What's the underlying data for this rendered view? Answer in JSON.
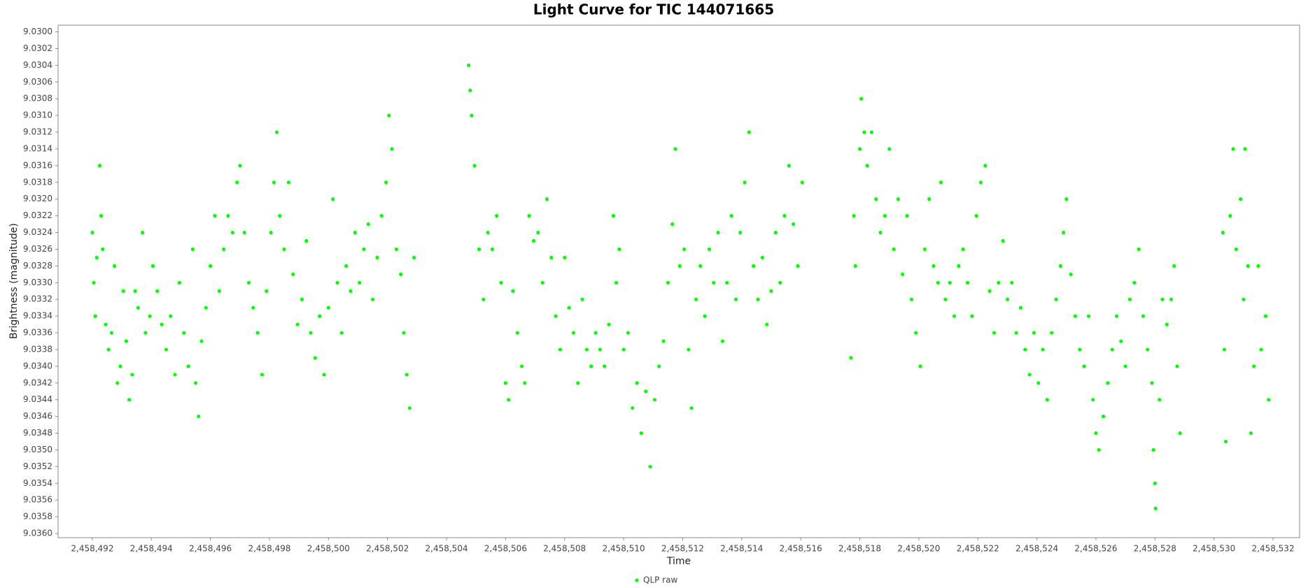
{
  "chart_data": {
    "type": "scatter",
    "title": "Light Curve for TIC 144071665",
    "x_label": "Time",
    "y_label": "Brightness (magnitude)",
    "xlim": [
      2458490.84,
      2458532.9
    ],
    "ylim": [
      9.03605,
      9.02992
    ],
    "xticks": [
      {
        "value": 2458492,
        "label": "2,458,492"
      },
      {
        "value": 2458494,
        "label": "2,458,494"
      },
      {
        "value": 2458496,
        "label": "2,458,496"
      },
      {
        "value": 2458498,
        "label": "2,458,498"
      },
      {
        "value": 2458500,
        "label": "2,458,500"
      },
      {
        "value": 2458502,
        "label": "2,458,502"
      },
      {
        "value": 2458504,
        "label": "2,458,504"
      },
      {
        "value": 2458506,
        "label": "2,458,506"
      },
      {
        "value": 2458508,
        "label": "2,458,508"
      },
      {
        "value": 2458510,
        "label": "2,458,510"
      },
      {
        "value": 2458512,
        "label": "2,458,512"
      },
      {
        "value": 2458514,
        "label": "2,458,514"
      },
      {
        "value": 2458516,
        "label": "2,458,516"
      },
      {
        "value": 2458518,
        "label": "2,458,518"
      },
      {
        "value": 2458520,
        "label": "2,458,520"
      },
      {
        "value": 2458522,
        "label": "2,458,522"
      },
      {
        "value": 2458524,
        "label": "2,458,524"
      },
      {
        "value": 2458526,
        "label": "2,458,526"
      },
      {
        "value": 2458528,
        "label": "2,458,528"
      },
      {
        "value": 2458530,
        "label": "2,458,530"
      },
      {
        "value": 2458532,
        "label": "2,458,532"
      }
    ],
    "yticks": [
      {
        "value": 9.03,
        "label": "9.0300"
      },
      {
        "value": 9.0302,
        "label": "9.0302"
      },
      {
        "value": 9.0304,
        "label": "9.0304"
      },
      {
        "value": 9.0306,
        "label": "9.0306"
      },
      {
        "value": 9.0308,
        "label": "9.0308"
      },
      {
        "value": 9.031,
        "label": "9.0310"
      },
      {
        "value": 9.0312,
        "label": "9.0312"
      },
      {
        "value": 9.0314,
        "label": "9.0314"
      },
      {
        "value": 9.0316,
        "label": "9.0316"
      },
      {
        "value": 9.0318,
        "label": "9.0318"
      },
      {
        "value": 9.032,
        "label": "9.0320"
      },
      {
        "value": 9.0322,
        "label": "9.0322"
      },
      {
        "value": 9.0324,
        "label": "9.0324"
      },
      {
        "value": 9.0326,
        "label": "9.0326"
      },
      {
        "value": 9.0328,
        "label": "9.0328"
      },
      {
        "value": 9.033,
        "label": "9.0330"
      },
      {
        "value": 9.0332,
        "label": "9.0332"
      },
      {
        "value": 9.0334,
        "label": "9.0334"
      },
      {
        "value": 9.0336,
        "label": "9.0336"
      },
      {
        "value": 9.0338,
        "label": "9.0338"
      },
      {
        "value": 9.034,
        "label": "9.0340"
      },
      {
        "value": 9.0342,
        "label": "9.0342"
      },
      {
        "value": 9.0344,
        "label": "9.0344"
      },
      {
        "value": 9.0346,
        "label": "9.0346"
      },
      {
        "value": 9.0348,
        "label": "9.0348"
      },
      {
        "value": 9.035,
        "label": "9.0350"
      },
      {
        "value": 9.0352,
        "label": "9.0352"
      },
      {
        "value": 9.0354,
        "label": "9.0354"
      },
      {
        "value": 9.0356,
        "label": "9.0356"
      },
      {
        "value": 9.0358,
        "label": "9.0358"
      },
      {
        "value": 9.036,
        "label": "9.0360"
      }
    ],
    "grid": false,
    "legend": "bottom",
    "x": [
      2458492.0,
      2458492.05,
      2458492.1,
      2458492.15,
      2458492.25,
      2458492.3,
      2458492.35,
      2458492.45,
      2458492.55,
      2458492.65,
      2458492.75,
      2458492.85,
      2458492.95,
      2458493.05,
      2458493.15,
      2458493.25,
      2458493.35,
      2458493.45,
      2458493.55,
      2458493.7,
      2458493.8,
      2458493.95,
      2458494.05,
      2458494.2,
      2458494.35,
      2458494.5,
      2458494.65,
      2458494.8,
      2458494.95,
      2458495.1,
      2458495.25,
      2458495.4,
      2458495.5,
      2458495.6,
      2458495.7,
      2458495.85,
      2458496.0,
      2458496.15,
      2458496.3,
      2458496.45,
      2458496.6,
      2458496.75,
      2458496.9,
      2458497.0,
      2458497.15,
      2458497.3,
      2458497.45,
      2458497.6,
      2458497.75,
      2458497.9,
      2458498.05,
      2458498.15,
      2458498.25,
      2458498.35,
      2458498.5,
      2458498.65,
      2458498.8,
      2458498.95,
      2458499.1,
      2458499.25,
      2458499.4,
      2458499.55,
      2458499.7,
      2458499.85,
      2458500.0,
      2458500.15,
      2458500.3,
      2458500.45,
      2458500.6,
      2458500.75,
      2458500.9,
      2458501.05,
      2458501.2,
      2458501.35,
      2458501.5,
      2458501.65,
      2458501.8,
      2458501.95,
      2458502.05,
      2458502.15,
      2458502.3,
      2458502.45,
      2458502.55,
      2458502.65,
      2458502.75,
      2458502.9,
      2458504.75,
      2458504.8,
      2458504.85,
      2458504.95,
      2458505.1,
      2458505.25,
      2458505.4,
      2458505.55,
      2458505.7,
      2458505.85,
      2458506.0,
      2458506.1,
      2458506.25,
      2458506.4,
      2458506.55,
      2458506.65,
      2458506.8,
      2458506.95,
      2458507.1,
      2458507.25,
      2458507.4,
      2458507.55,
      2458507.7,
      2458507.85,
      2458508.0,
      2458508.15,
      2458508.3,
      2458508.45,
      2458508.6,
      2458508.75,
      2458508.9,
      2458509.05,
      2458509.2,
      2458509.35,
      2458509.5,
      2458509.65,
      2458509.75,
      2458509.85,
      2458510.0,
      2458510.15,
      2458510.3,
      2458510.45,
      2458510.6,
      2458510.75,
      2458510.9,
      2458511.05,
      2458511.2,
      2458511.35,
      2458511.5,
      2458511.65,
      2458511.75,
      2458511.9,
      2458512.05,
      2458512.2,
      2458512.3,
      2458512.45,
      2458512.6,
      2458512.75,
      2458512.9,
      2458513.05,
      2458513.2,
      2458513.35,
      2458513.5,
      2458513.65,
      2458513.8,
      2458513.95,
      2458514.1,
      2458514.25,
      2458514.4,
      2458514.55,
      2458514.7,
      2458514.85,
      2458515.0,
      2458515.15,
      2458515.3,
      2458515.45,
      2458515.6,
      2458515.75,
      2458515.9,
      2458516.05,
      2458517.7,
      2458517.8,
      2458517.85,
      2458518.0,
      2458518.05,
      2458518.15,
      2458518.25,
      2458518.4,
      2458518.55,
      2458518.7,
      2458518.85,
      2458519.0,
      2458519.15,
      2458519.3,
      2458519.45,
      2458519.6,
      2458519.75,
      2458519.9,
      2458520.05,
      2458520.2,
      2458520.35,
      2458520.5,
      2458520.65,
      2458520.75,
      2458520.9,
      2458521.05,
      2458521.2,
      2458521.35,
      2458521.5,
      2458521.65,
      2458521.8,
      2458521.95,
      2458522.1,
      2458522.25,
      2458522.4,
      2458522.55,
      2458522.7,
      2458522.85,
      2458523.0,
      2458523.15,
      2458523.3,
      2458523.45,
      2458523.6,
      2458523.75,
      2458523.9,
      2458524.05,
      2458524.2,
      2458524.35,
      2458524.5,
      2458524.65,
      2458524.8,
      2458524.9,
      2458525.0,
      2458525.15,
      2458525.3,
      2458525.45,
      2458525.6,
      2458525.75,
      2458525.9,
      2458526.0,
      2458526.1,
      2458526.25,
      2458526.4,
      2458526.55,
      2458526.7,
      2458526.85,
      2458527.0,
      2458527.15,
      2458527.3,
      2458527.45,
      2458527.6,
      2458527.75,
      2458527.9,
      2458527.95,
      2458528.0,
      2458528.02,
      2458528.15,
      2458528.25,
      2458528.4,
      2458528.55,
      2458528.65,
      2458528.75,
      2458528.85,
      2458530.3,
      2458530.35,
      2458530.4,
      2458530.55,
      2458530.65,
      2458530.75,
      2458530.9,
      2458531.0,
      2458531.05,
      2458531.15,
      2458531.25,
      2458531.35,
      2458531.5,
      2458531.6,
      2458531.75,
      2458531.85
    ],
    "series": [
      {
        "name": "QLP raw",
        "color": "#00ff00",
        "values": [
          9.0324,
          9.033,
          9.0334,
          9.0327,
          9.0316,
          9.0322,
          9.0326,
          9.0335,
          9.0338,
          9.0336,
          9.0328,
          9.0342,
          9.034,
          9.0331,
          9.0337,
          9.0344,
          9.0341,
          9.0331,
          9.0333,
          9.0324,
          9.0336,
          9.0334,
          9.0328,
          9.0331,
          9.0335,
          9.0338,
          9.0334,
          9.0341,
          9.033,
          9.0336,
          9.034,
          9.0326,
          9.0342,
          9.0346,
          9.0337,
          9.0333,
          9.0328,
          9.0322,
          9.0331,
          9.0326,
          9.0322,
          9.0324,
          9.0318,
          9.0316,
          9.0324,
          9.033,
          9.0333,
          9.0336,
          9.0341,
          9.0331,
          9.0324,
          9.0318,
          9.0312,
          9.0322,
          9.0326,
          9.0318,
          9.0329,
          9.0335,
          9.0332,
          9.0325,
          9.0336,
          9.0339,
          9.0334,
          9.0341,
          9.0333,
          9.032,
          9.033,
          9.0336,
          9.0328,
          9.0331,
          9.0324,
          9.033,
          9.0326,
          9.0323,
          9.0332,
          9.0327,
          9.0322,
          9.0318,
          9.031,
          9.0314,
          9.0326,
          9.0329,
          9.0336,
          9.0341,
          9.0345,
          9.0327,
          9.0304,
          9.0307,
          9.031,
          9.0316,
          9.0326,
          9.0332,
          9.0324,
          9.0326,
          9.0322,
          9.033,
          9.0342,
          9.0344,
          9.0331,
          9.0336,
          9.034,
          9.0342,
          9.0322,
          9.0325,
          9.0324,
          9.033,
          9.032,
          9.0327,
          9.0334,
          9.0338,
          9.0327,
          9.0333,
          9.0336,
          9.0342,
          9.0332,
          9.0338,
          9.034,
          9.0336,
          9.0338,
          9.034,
          9.0335,
          9.0322,
          9.033,
          9.0326,
          9.0338,
          9.0336,
          9.0345,
          9.0342,
          9.0348,
          9.0343,
          9.0352,
          9.0344,
          9.034,
          9.0337,
          9.033,
          9.0323,
          9.0314,
          9.0328,
          9.0326,
          9.0338,
          9.0345,
          9.0332,
          9.0328,
          9.0334,
          9.0326,
          9.033,
          9.0324,
          9.0337,
          9.033,
          9.0322,
          9.0332,
          9.0324,
          9.0318,
          9.0312,
          9.0328,
          9.0332,
          9.0327,
          9.0335,
          9.0331,
          9.0324,
          9.033,
          9.0322,
          9.0316,
          9.0323,
          9.0328,
          9.0318,
          9.0339,
          9.0322,
          9.0328,
          9.0314,
          9.0308,
          9.0312,
          9.0316,
          9.0312,
          9.032,
          9.0324,
          9.0322,
          9.0314,
          9.0326,
          9.032,
          9.0329,
          9.0322,
          9.0332,
          9.0336,
          9.034,
          9.0326,
          9.032,
          9.0328,
          9.033,
          9.0318,
          9.0332,
          9.033,
          9.0334,
          9.0328,
          9.0326,
          9.033,
          9.0334,
          9.0322,
          9.0318,
          9.0316,
          9.0331,
          9.0336,
          9.033,
          9.0325,
          9.0332,
          9.033,
          9.0336,
          9.0333,
          9.0338,
          9.0341,
          9.0336,
          9.0342,
          9.0338,
          9.0344,
          9.0336,
          9.0332,
          9.0328,
          9.0324,
          9.032,
          9.0329,
          9.0334,
          9.0338,
          9.034,
          9.0334,
          9.0344,
          9.0348,
          9.035,
          9.0346,
          9.0342,
          9.0338,
          9.0334,
          9.0337,
          9.034,
          9.0332,
          9.033,
          9.0326,
          9.0334,
          9.0338,
          9.0342,
          9.035,
          9.0354,
          9.0357,
          9.0344,
          9.0332,
          9.0335,
          9.0332,
          9.0328,
          9.034,
          9.0348,
          9.0324,
          9.0338,
          9.0349,
          9.0322,
          9.0314,
          9.0326,
          9.032,
          9.0332,
          9.0314,
          9.0328,
          9.0348,
          9.034,
          9.0328,
          9.0338,
          9.0334,
          9.0344
        ]
      }
    ]
  }
}
